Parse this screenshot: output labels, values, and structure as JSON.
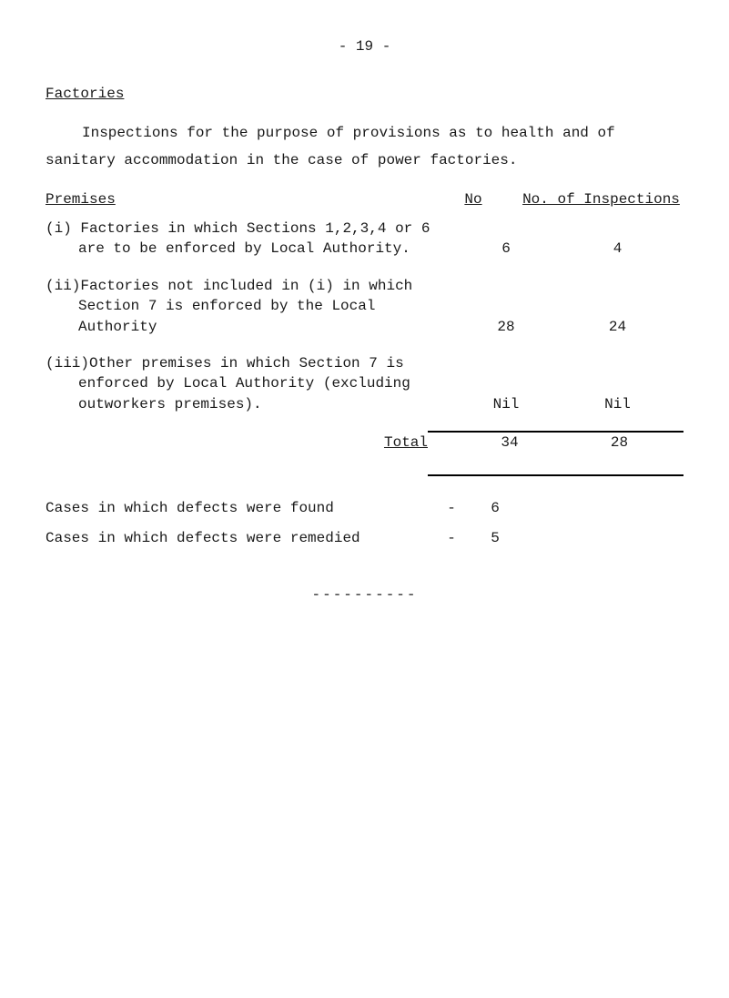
{
  "page_number": "- 19 -",
  "heading": "Factories",
  "intro_line1": "Inspections for the purpose of provisions as to health and of",
  "intro_line2": "sanitary accommodation in the case of power factories.",
  "columns": {
    "premises": "Premises",
    "no": "No",
    "inspections": "No. of Inspections"
  },
  "rows": [
    {
      "desc": "(i) Factories in which Sections 1,2,3,4 or 6 are to be enforced by Local Authority.",
      "no": "6",
      "insp": "4"
    },
    {
      "desc": "(ii)Factories not included in (i) in which Section 7 is enforced by the Local Authority",
      "no": "28",
      "insp": "24"
    },
    {
      "desc": "(iii)Other premises in which Section 7 is enforced by Local Authority (excluding outworkers premises).",
      "no": "Nil",
      "insp": "Nil"
    }
  ],
  "total": {
    "label": "Total",
    "no": "34",
    "insp": "28"
  },
  "cases_found": {
    "label": "Cases in which defects were found",
    "dash": "-",
    "value": "6"
  },
  "cases_remedied": {
    "label": "Cases in which defects were remedied",
    "dash": "-",
    "value": "5"
  },
  "separator": "----------"
}
